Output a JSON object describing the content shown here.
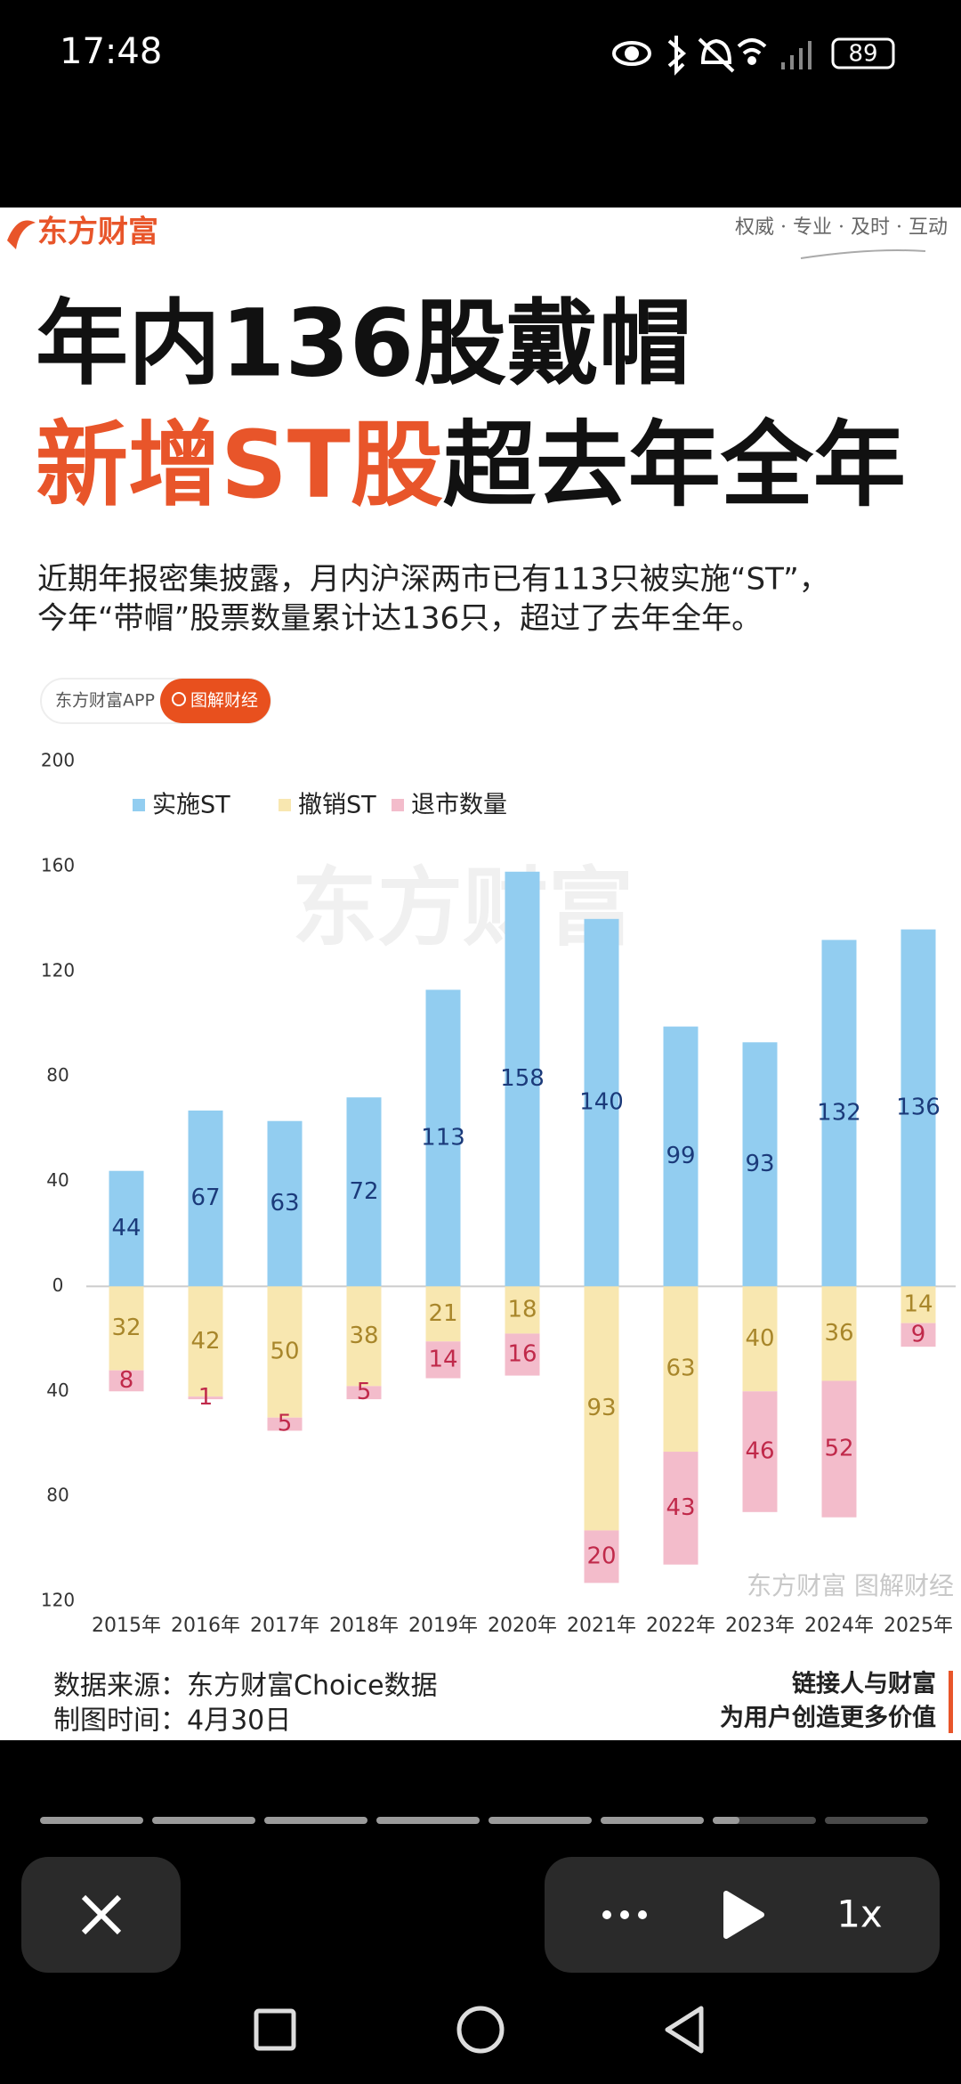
{
  "status_bar": {
    "time": "17:48",
    "battery": "89"
  },
  "header": {
    "logo": "东方财富",
    "slogan": "权威 · 专业 · 及时 · 互动",
    "title_line1": "年内136股戴帽",
    "title_line2_highlight": "新增ST股",
    "title_line2_rest": "超去年全年",
    "description": [
      "近期年报密集披露，月内沪深两市已有113只被实施“ST”，",
      "今年“带帽”股票数量累计达136只，超过了去年全年。"
    ]
  },
  "badge": {
    "app": "东方财富APP",
    "tag": "图解财经"
  },
  "chart_data": {
    "type": "bar",
    "stacked": true,
    "categories": [
      "2015年",
      "2016年",
      "2017年",
      "2018年",
      "2019年",
      "2020年",
      "2021年",
      "2022年",
      "2023年",
      "2024年",
      "2025年"
    ],
    "series": [
      {
        "name": "实施ST",
        "color": "#92cdf0",
        "label_color": "#1b3a7a",
        "values": [
          44,
          67,
          63,
          72,
          113,
          158,
          140,
          99,
          93,
          132,
          136
        ]
      },
      {
        "name": "撤销ST",
        "color": "#f8e7b0",
        "label_color": "#a8862a",
        "values": [
          -32,
          -42,
          -50,
          -38,
          -21,
          -18,
          -93,
          -63,
          -40,
          -36,
          -14
        ],
        "value_labels": [
          "32",
          "42",
          "50",
          "38",
          "21",
          "18",
          "93",
          "63",
          "40",
          "36",
          "14"
        ]
      },
      {
        "name": "退市数量",
        "color": "#f3bccb",
        "label_color": "#c0294a",
        "values": [
          -8,
          -1,
          -5,
          -5,
          -14,
          -16,
          -20,
          -43,
          -46,
          -52,
          -9
        ],
        "value_labels": [
          "8",
          "1",
          "5",
          "5",
          "14",
          "16",
          "20",
          "43",
          "46",
          "52",
          "9"
        ]
      }
    ],
    "ylim": [
      -120,
      200
    ],
    "yticks": [
      200,
      160,
      120,
      80,
      40,
      0,
      {
        "value": -40,
        "label": "40"
      },
      {
        "value": -80,
        "label": "80"
      },
      {
        "value": -120,
        "label": "120"
      }
    ],
    "grid": false,
    "legend": "top-left"
  },
  "watermark": {
    "center": "东方财富",
    "corner": "东方财富 图解财经"
  },
  "footer": {
    "source": "数据来源：东方财富Choice数据",
    "date": "制图时间：4月30日",
    "slogan1": "链接人与财富",
    "slogan2": "为用户创造更多价值"
  },
  "controls": {
    "speed": "1x"
  }
}
